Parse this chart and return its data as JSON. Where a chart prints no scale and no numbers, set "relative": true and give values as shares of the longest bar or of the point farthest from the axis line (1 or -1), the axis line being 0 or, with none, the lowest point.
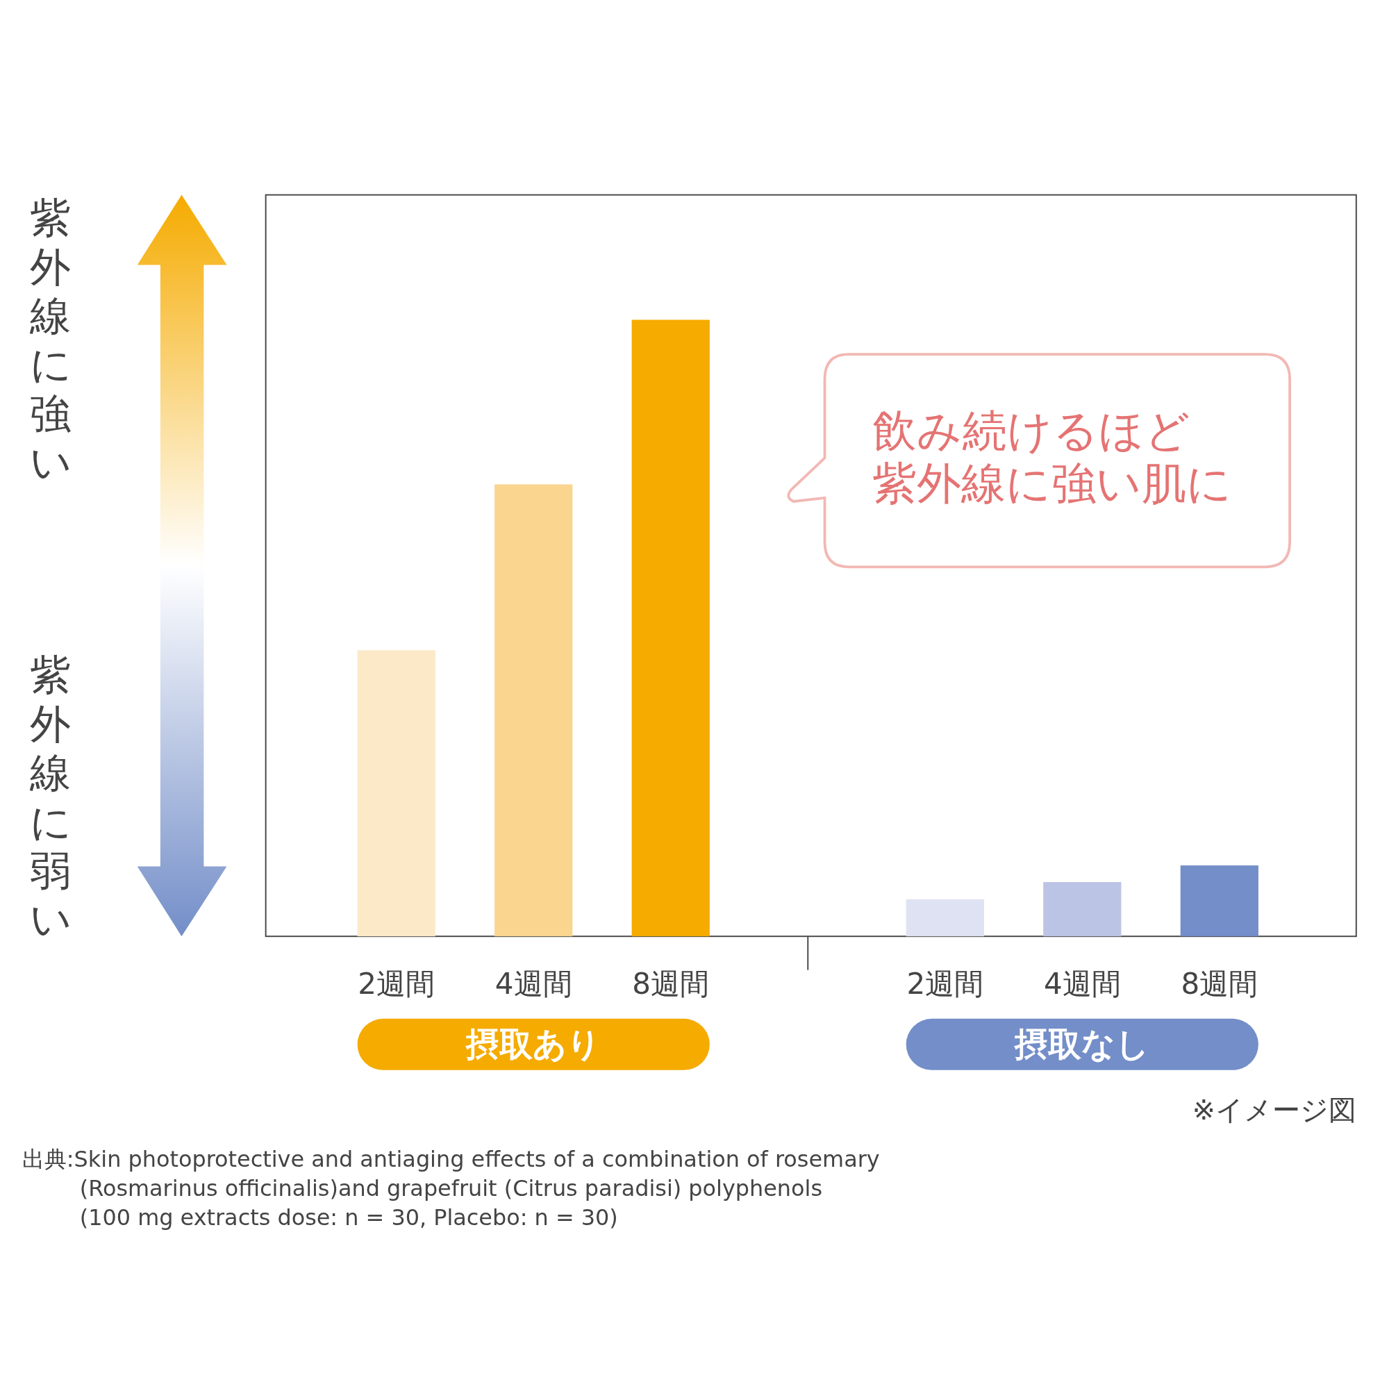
{
  "chart_data": {
    "type": "bar",
    "relative": true,
    "categories": [
      "2週間",
      "4週間",
      "8週間",
      null,
      "2週間",
      "4週間",
      "8週間"
    ],
    "values": [
      0.464,
      0.733,
      1,
      null,
      0.06,
      0.088,
      0.115
    ],
    "colors": [
      "#fce9c8",
      "#fad58f",
      "#f5ab00",
      null,
      "#dfe2f3",
      "#bcc4e5",
      "#738ec8"
    ],
    "annotations": [
      "紫外線に強い",
      "紫外線に弱い",
      "飲み続けるほど",
      "紫外線に強い肌に",
      "摂取あり",
      "摂取なし",
      "※イメージ図",
      "出典:Skin photoprotective and antiaging effects of a combination of rosemary\n(Rosmarinus officinalis)and grapefruit (Citrus paradisi) polyphenols\n(100 mg extracts dose: n = 30, Placebo: n = 30)"
    ]
  }
}
